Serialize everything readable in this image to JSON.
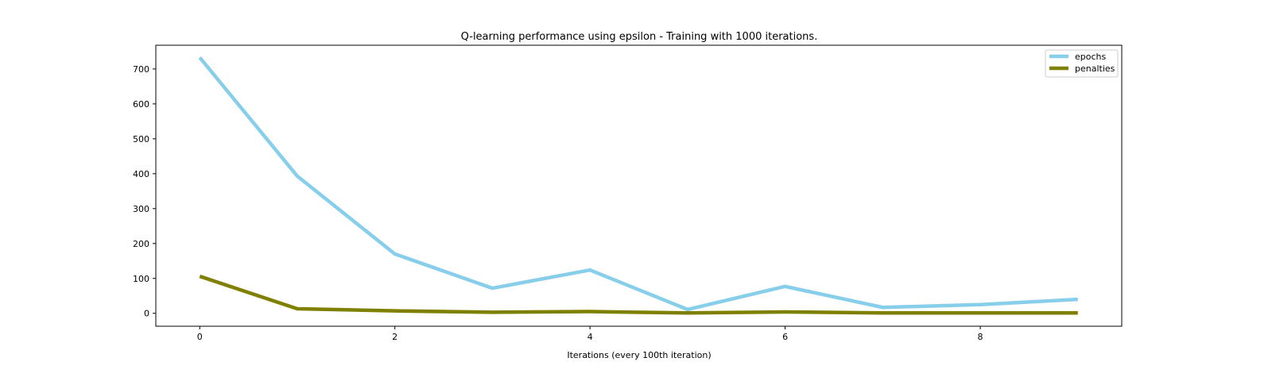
{
  "chart_data": {
    "type": "line",
    "title": "Q-learning performance using epsilon - Training with 1000 iterations.",
    "xlabel": "Iterations (every 100th iteration)",
    "ylabel": "",
    "x": [
      0,
      1,
      2,
      3,
      4,
      5,
      6,
      7,
      8,
      9
    ],
    "xlim": [
      -0.45,
      9.45
    ],
    "ylim": [
      -37,
      768
    ],
    "xticks": [
      0,
      2,
      4,
      6,
      8
    ],
    "yticks": [
      0,
      100,
      200,
      300,
      400,
      500,
      600,
      700
    ],
    "grid": false,
    "legend_position": "top-right",
    "series": [
      {
        "name": "epochs",
        "color": "#87ceeb",
        "values": [
          733,
          393,
          170,
          72,
          124,
          11,
          77,
          17,
          25,
          40
        ]
      },
      {
        "name": "penalties",
        "color": "#808000",
        "values": [
          106,
          13,
          7,
          3,
          5,
          1,
          4,
          1,
          1,
          1
        ]
      }
    ]
  }
}
